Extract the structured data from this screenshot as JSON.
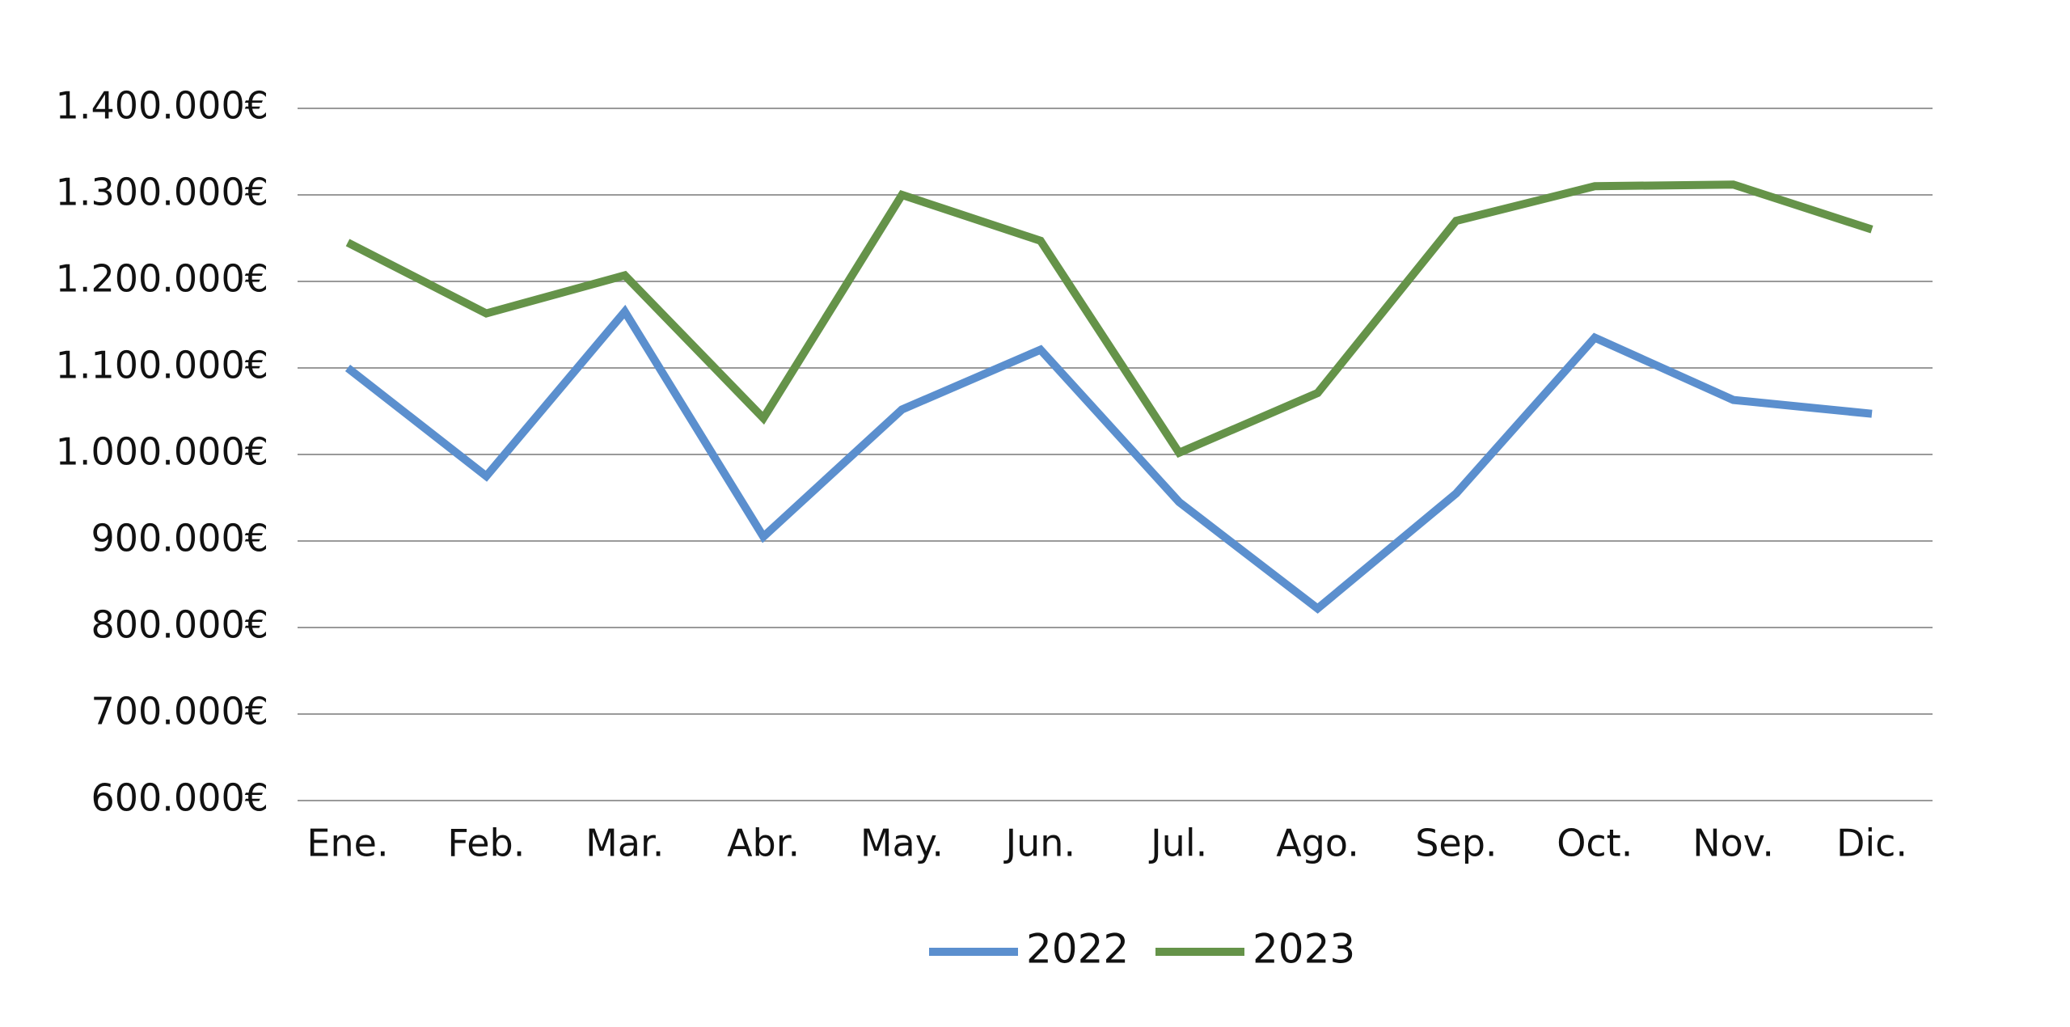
{
  "chart_data": {
    "type": "line",
    "categories": [
      "Ene.",
      "Feb.",
      "Mar.",
      "Abr.",
      "May.",
      "Jun.",
      "Jul.",
      "Ago.",
      "Sep.",
      "Oct.",
      "Nov.",
      "Dic."
    ],
    "y_ticks": [
      "600.000€",
      "700.000€",
      "800.000€",
      "900.000€",
      "1.000.000€",
      "1.100.000€",
      "1.200.000€",
      "1.300.000€",
      "1.400.000€"
    ],
    "y_tick_values": [
      600000,
      700000,
      800000,
      900000,
      1000000,
      1100000,
      1200000,
      1300000,
      1400000
    ],
    "ylim": [
      600000,
      1400000
    ],
    "grid": true,
    "legend_position": "bottom-center",
    "series": [
      {
        "name": "2022",
        "color": "#5b8fce",
        "values": [
          1100000,
          975000,
          1165000,
          905000,
          1052000,
          1121000,
          945000,
          822000,
          955000,
          1135000,
          1063000,
          1047000
        ]
      },
      {
        "name": "2023",
        "color": "#659349",
        "values": [
          1245000,
          1163000,
          1207000,
          1042000,
          1300000,
          1247000,
          1002000,
          1071000,
          1270000,
          1310000,
          1312000,
          1260000
        ]
      }
    ]
  }
}
